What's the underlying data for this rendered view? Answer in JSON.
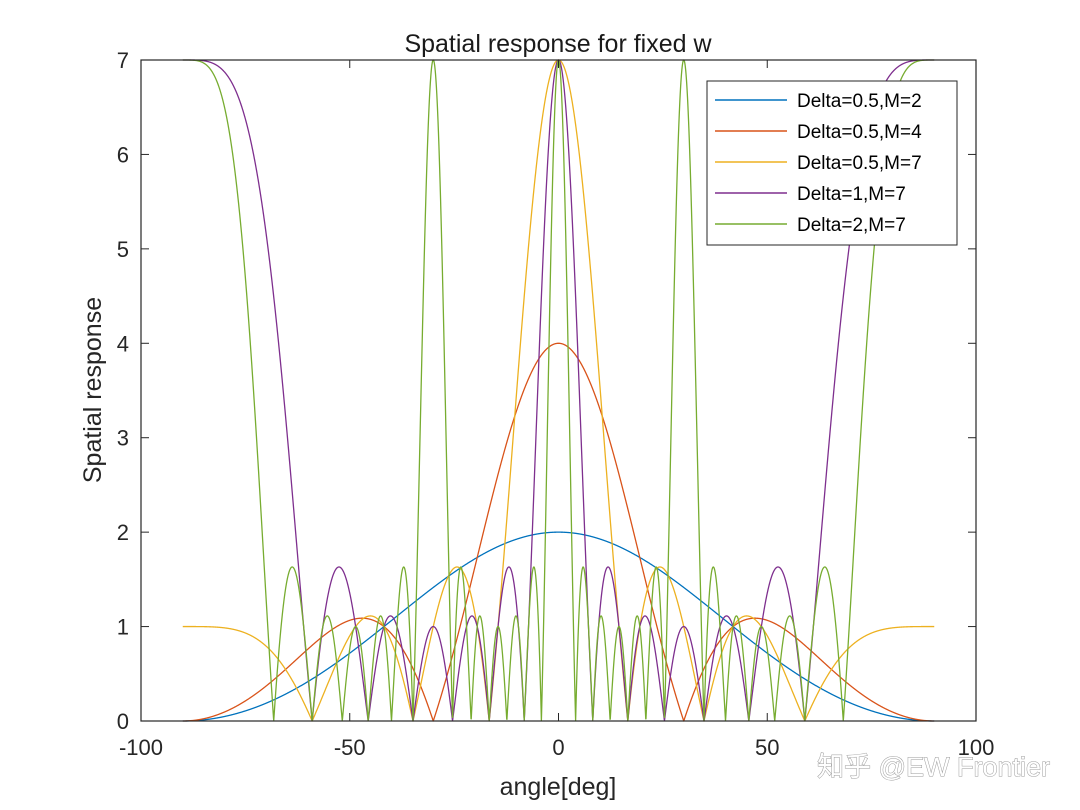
{
  "chart_data": {
    "type": "line",
    "title": "Spatial response for fixed w",
    "xlabel": "angle[deg]",
    "ylabel": "Spatial response",
    "xlim": [
      -100,
      100
    ],
    "ylim": [
      0,
      7
    ],
    "x_ticks": [
      "-100",
      "-50",
      "0",
      "50",
      "100"
    ],
    "y_ticks": [
      "0",
      "1",
      "2",
      "3",
      "4",
      "5",
      "6",
      "7"
    ],
    "x_range_of_series": [
      -90,
      90
    ],
    "formula": "|sin(pi*M*Delta*sin(angle)) / sin(pi*Delta*sin(angle))|",
    "legend_position": "top-right",
    "series": [
      {
        "name": "Delta=0.5,M=2",
        "delta": 0.5,
        "M": 2,
        "color": "#0072BD"
      },
      {
        "name": "Delta=0.5,M=4",
        "delta": 0.5,
        "M": 4,
        "color": "#D95319"
      },
      {
        "name": "Delta=0.5,M=7",
        "delta": 0.5,
        "M": 7,
        "color": "#EDB120"
      },
      {
        "name": "Delta=1,M=7",
        "delta": 1,
        "M": 7,
        "color": "#7E2F8E"
      },
      {
        "name": "Delta=2,M=7",
        "delta": 2,
        "M": 7,
        "color": "#77AC30"
      }
    ]
  },
  "watermark": "知乎 @EW Frontier"
}
